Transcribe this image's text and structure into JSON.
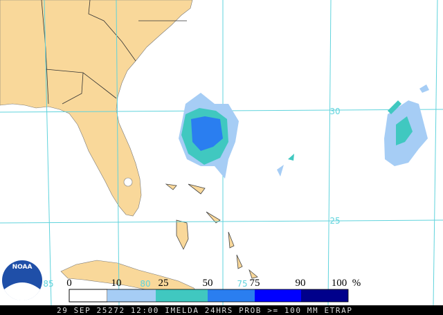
{
  "logo": "NOAA",
  "grid_labels": {
    "latitude": [
      "30",
      "25"
    ],
    "longitude": [
      "85",
      "80",
      "75"
    ]
  },
  "legend": {
    "labels": [
      "0",
      "10",
      "25",
      "50",
      "75",
      "90",
      "100"
    ],
    "unit": "%"
  },
  "footer": "29 SEP 25272 12:00 IMELDA 24HRS PROB >= 100 MM ETRAP"
}
